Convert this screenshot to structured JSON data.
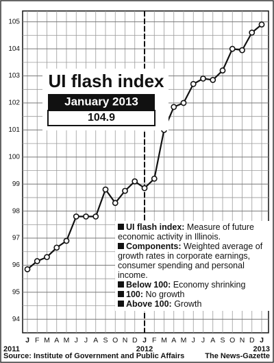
{
  "chart_data": {
    "type": "line",
    "title": "UI flash index",
    "callout_label": "January 2013",
    "callout_value": 104.9,
    "categories": [
      "J",
      "F",
      "M",
      "A",
      "M",
      "J",
      "J",
      "A",
      "S",
      "O",
      "N",
      "D",
      "J",
      "F",
      "M",
      "A",
      "M",
      "J",
      "J",
      "A",
      "S",
      "O",
      "N",
      "D",
      "J"
    ],
    "year_labels": [
      "2011",
      "2012",
      "2013"
    ],
    "values": [
      95.85,
      96.15,
      96.3,
      96.65,
      96.9,
      97.8,
      97.8,
      97.8,
      98.8,
      98.3,
      98.75,
      99.1,
      98.85,
      99.2,
      101.0,
      101.85,
      102.0,
      102.7,
      102.9,
      102.85,
      103.2,
      104.0,
      103.95,
      104.6,
      104.9
    ],
    "color": "#111111",
    "ylim": [
      93.5,
      105.4
    ],
    "yticks": [
      94,
      95,
      96,
      97,
      98,
      99,
      100,
      101,
      102,
      103,
      104,
      105
    ],
    "grid": true,
    "notes": [
      {
        "term": "UI flash index:",
        "text": "Measure of future economic activity in Illinois."
      },
      {
        "term": "Components:",
        "text": "Weighted average of growth rates in corporate earnings, consumer spending and personal income."
      },
      {
        "term": "Below 100:",
        "text": "Economy shrinking"
      },
      {
        "term": "100:",
        "text": "No growth"
      },
      {
        "term": "Above 100:",
        "text": "Growth"
      }
    ],
    "source": "Source: Institute of Government and Public Affairs",
    "credit": "The News-Gazette"
  }
}
